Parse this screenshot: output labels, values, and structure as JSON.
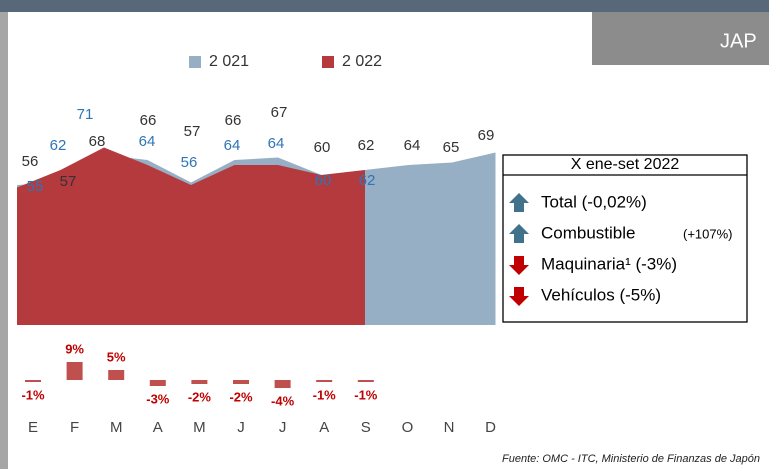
{
  "header": {
    "title": "JAP"
  },
  "chart_data": [
    {
      "type": "area",
      "categories": [
        "E",
        "F",
        "M",
        "A",
        "M",
        "J",
        "J",
        "A",
        "S",
        "O",
        "N",
        "D"
      ],
      "series": [
        {
          "name": "2 021",
          "color": "#97afc4",
          "label_color": "#333333",
          "values": [
            56,
            57,
            68,
            66,
            57,
            66,
            67,
            60,
            62,
            64,
            65,
            69
          ]
        },
        {
          "name": "2 022",
          "color": "#b53a3e",
          "label_color": "#2e75b6",
          "values": [
            55,
            62,
            71,
            64,
            56,
            64,
            64,
            60,
            62,
            null,
            null,
            null
          ]
        }
      ],
      "ylim": [
        0,
        72
      ]
    },
    {
      "type": "bar",
      "values": [
        -1,
        9,
        5,
        -3,
        -2,
        -2,
        -4,
        -1,
        -1
      ],
      "value_labels": [
        "-1%",
        "9%",
        "5%",
        "-3%",
        "-2%",
        "-2%",
        "-4%",
        "-1%",
        "-1%"
      ],
      "color": "#c0504d",
      "ylim": [
        -6,
        10
      ]
    }
  ],
  "legend_box": {
    "title": "X ene-set 2022",
    "items": [
      {
        "text": "Total (-0,02%)",
        "direction": "up"
      },
      {
        "text": "Combustible",
        "note": "(+107%)",
        "direction": "up"
      },
      {
        "text": "Maquinaria¹ (-3%)",
        "direction": "down"
      },
      {
        "text": "Vehículos (-5%)",
        "direction": "down"
      }
    ]
  },
  "source": "Fuente: OMC  - ITC, Ministerio de Finanzas de Japón"
}
